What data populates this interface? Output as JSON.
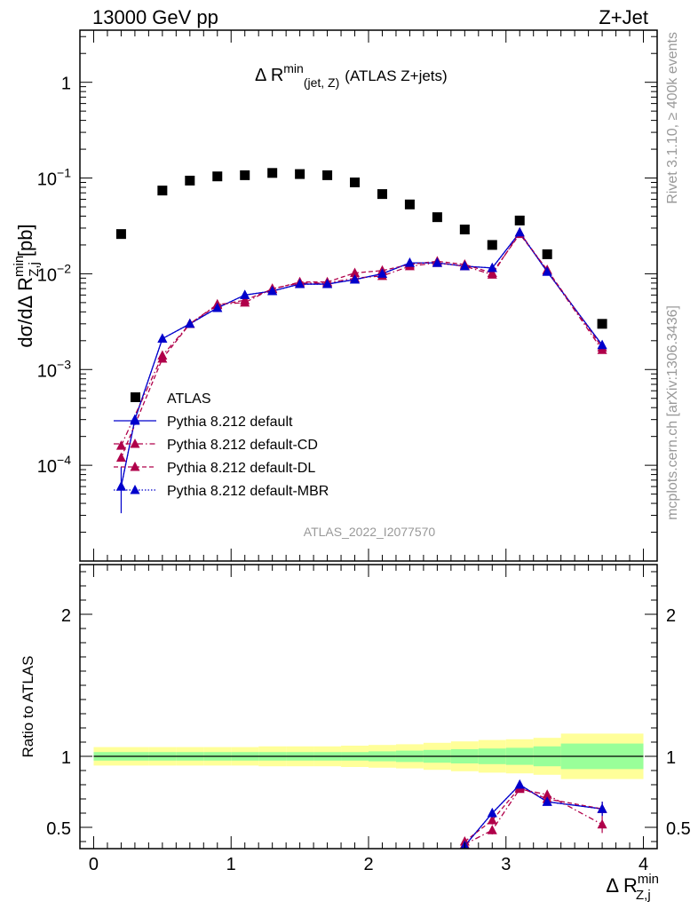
{
  "header": {
    "left": "13000 GeV pp",
    "right": "Z+Jet"
  },
  "side_labels": {
    "rivet": "Rivet 3.1.10, ≥ 400k events",
    "mcplots": "mcplots.cern.ch [arXiv:1306.3436]"
  },
  "colors": {
    "atlas": "#000000",
    "default": "#0000cc",
    "default_cd": "#b0004a",
    "default_dl": "#b0004a",
    "default_mbr": "#0000cc",
    "band_inner": "#99ff99",
    "band_outer": "#ffff99"
  },
  "chart_data": [
    {
      "type": "scatter",
      "title": "Δ R^min(jet, Z) (ATLAS Z+jets)",
      "title_main": "Δ R",
      "title_sup": "min",
      "title_sub": "(jet, Z)",
      "title_rest": "(ATLAS Z+jets)",
      "analysis_id": "ATLAS_2022_I2077570",
      "ylabel": "dσ/dΔ R^min_Z,j [pb]",
      "ylabel_pre": "dσ/dΔ R",
      "ylabel_sup": "min",
      "ylabel_sub": "Z,j",
      "ylabel_post": "[pb]",
      "yscale": "log",
      "ylim": [
        1e-05,
        3.5
      ],
      "xlim": [
        -0.1,
        4.1
      ],
      "yticks": [
        0.0001,
        0.001,
        0.01,
        0.1,
        1
      ],
      "ytick_labels": [
        {
          "base": "10",
          "exp": "−4"
        },
        {
          "base": "10",
          "exp": "−3"
        },
        {
          "base": "10",
          "exp": "−2"
        },
        {
          "base": "10",
          "exp": "−1"
        },
        {
          "base": "1",
          "exp": ""
        }
      ],
      "legend_position": "lower-left",
      "series": [
        {
          "name": "ATLAS",
          "style": "square",
          "x": [
            0.2,
            0.5,
            0.7,
            0.9,
            1.1,
            1.3,
            1.5,
            1.7,
            1.9,
            2.1,
            2.3,
            2.5,
            2.7,
            2.9,
            3.1,
            3.3,
            3.7
          ],
          "y": [
            0.026,
            0.074,
            0.094,
            0.104,
            0.107,
            0.113,
            0.11,
            0.107,
            0.09,
            0.068,
            0.053,
            0.039,
            0.029,
            0.02,
            0.036,
            0.016,
            0.003
          ]
        },
        {
          "name": "Pythia 8.212 default",
          "style": "solid",
          "x": [
            0.2,
            0.3,
            0.5,
            0.7,
            0.9,
            1.1,
            1.3,
            1.5,
            1.7,
            1.9,
            2.1,
            2.3,
            2.5,
            2.7,
            2.9,
            3.1,
            3.3,
            3.7
          ],
          "y": [
            6e-05,
            0.0003,
            0.0021,
            0.003,
            0.0044,
            0.006,
            0.0066,
            0.0078,
            0.0078,
            0.0087,
            0.01,
            0.013,
            0.013,
            0.012,
            0.0115,
            0.027,
            0.0105,
            0.0018
          ],
          "err_low_factor": [
            1.9,
            1.1,
            1.05,
            1.05,
            1.05,
            1.05,
            1.05,
            1.05,
            1.05,
            1.05,
            1.05,
            1.05,
            1.05,
            1.05,
            1.05,
            1.05,
            1.05,
            1.05
          ],
          "err_high_factor": [
            1.6,
            1.1,
            1.05,
            1.05,
            1.05,
            1.05,
            1.05,
            1.05,
            1.05,
            1.05,
            1.05,
            1.05,
            1.05,
            1.05,
            1.05,
            1.05,
            1.05,
            1.05
          ]
        },
        {
          "name": "Pythia 8.212 default-CD",
          "style": "dashdot",
          "x": [
            0.2,
            0.5,
            0.7,
            0.9,
            1.1,
            1.3,
            1.5,
            1.7,
            1.9,
            2.1,
            2.3,
            2.5,
            2.7,
            2.9,
            3.1,
            3.3,
            3.7
          ],
          "y": [
            0.00016,
            0.0014,
            0.003,
            0.0048,
            0.005,
            0.007,
            0.008,
            0.008,
            0.009,
            0.0095,
            0.012,
            0.013,
            0.012,
            0.0098,
            0.027,
            0.0108,
            0.0016
          ]
        },
        {
          "name": "Pythia 8.212 default-DL",
          "style": "dashed",
          "x": [
            0.2,
            0.5,
            0.7,
            0.9,
            1.1,
            1.3,
            1.5,
            1.7,
            1.9,
            2.1,
            2.3,
            2.5,
            2.7,
            2.9,
            3.1,
            3.3,
            3.7
          ],
          "y": [
            0.00012,
            0.0013,
            0.003,
            0.0047,
            0.0053,
            0.0069,
            0.0082,
            0.0082,
            0.0102,
            0.0108,
            0.0125,
            0.0135,
            0.0125,
            0.0102,
            0.026,
            0.011,
            0.0017
          ]
        },
        {
          "name": "Pythia 8.212 default-MBR",
          "style": "dotted",
          "x": [
            0.2,
            0.3,
            0.5,
            0.7,
            0.9,
            1.1,
            1.3,
            1.5,
            1.7,
            1.9,
            2.1,
            2.3,
            2.5,
            2.7,
            2.9,
            3.1,
            3.3,
            3.7
          ],
          "y": [
            6e-05,
            0.0003,
            0.0021,
            0.003,
            0.0044,
            0.006,
            0.0066,
            0.0078,
            0.0078,
            0.0087,
            0.01,
            0.013,
            0.013,
            0.012,
            0.0115,
            0.027,
            0.0105,
            0.0018
          ]
        }
      ]
    },
    {
      "type": "line",
      "ylabel": "Ratio to ATLAS",
      "xlabel": "Δ R^min_Z,j",
      "xlabel_main": "Δ R",
      "xlabel_sup": "min",
      "xlabel_sub": "Z,j",
      "xlim": [
        -0.1,
        4.1
      ],
      "ylim": [
        0.35,
        2.35
      ],
      "xticks": [
        0,
        1,
        2,
        3,
        4
      ],
      "xtick_labels": [
        "0",
        "1",
        "2",
        "3",
        "4"
      ],
      "yticks": [
        0.5,
        1,
        2
      ],
      "ytick_labels": [
        "0.5",
        "1",
        "2"
      ],
      "bands": {
        "edges": [
          0.0,
          0.4,
          0.6,
          0.8,
          1.0,
          1.2,
          1.4,
          1.6,
          1.8,
          2.0,
          2.2,
          2.4,
          2.6,
          2.8,
          3.0,
          3.2,
          3.4,
          4.0
        ],
        "inner": [
          0.03,
          0.03,
          0.03,
          0.03,
          0.03,
          0.03,
          0.03,
          0.03,
          0.03,
          0.035,
          0.04,
          0.045,
          0.05,
          0.055,
          0.06,
          0.07,
          0.09
        ],
        "outer": [
          0.065,
          0.065,
          0.065,
          0.065,
          0.065,
          0.07,
          0.07,
          0.07,
          0.075,
          0.08,
          0.085,
          0.095,
          0.105,
          0.115,
          0.12,
          0.13,
          0.16
        ]
      },
      "series": [
        {
          "name": "Pythia 8.212 default",
          "style": "solid",
          "x": [
            2.7,
            2.9,
            3.1,
            3.3,
            3.7
          ],
          "y": [
            0.37,
            0.6,
            0.8,
            0.68,
            0.63
          ],
          "err": [
            0.03,
            0.03,
            0.02,
            0.02,
            0.05
          ]
        },
        {
          "name": "Pythia 8.212 default-CD",
          "style": "dashdot",
          "x": [
            2.7,
            2.9,
            3.1,
            3.3,
            3.7
          ],
          "y": [
            0.38,
            0.48,
            0.77,
            0.73,
            0.52
          ],
          "err": [
            0.03,
            0.03,
            0.02,
            0.02,
            0.06
          ]
        },
        {
          "name": "Pythia 8.212 default-DL",
          "style": "dashed",
          "x": [
            2.7,
            2.9,
            3.1,
            3.3,
            3.7
          ],
          "y": [
            0.4,
            0.55,
            0.78,
            0.7,
            0.63
          ],
          "err": [
            0.03,
            0.03,
            0.02,
            0.02,
            0.05
          ]
        },
        {
          "name": "Pythia 8.212 default-MBR",
          "style": "dotted",
          "x": [
            2.7,
            2.9,
            3.1,
            3.3,
            3.7
          ],
          "y": [
            0.37,
            0.6,
            0.8,
            0.68,
            0.63
          ],
          "err": [
            0.03,
            0.03,
            0.02,
            0.02,
            0.05
          ]
        }
      ]
    }
  ]
}
